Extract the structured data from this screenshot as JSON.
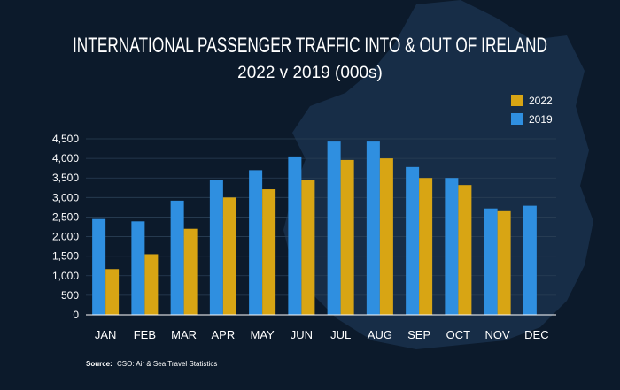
{
  "chart_data": {
    "type": "bar",
    "title": "INTERNATIONAL PASSENGER TRAFFIC INTO & OUT OF IRELAND",
    "subtitle": "2022 v 2019 (000s)",
    "categories": [
      "JAN",
      "FEB",
      "MAR",
      "APR",
      "MAY",
      "JUN",
      "JUL",
      "AUG",
      "SEP",
      "OCT",
      "NOV",
      "DEC"
    ],
    "series": [
      {
        "name": "2019",
        "color": "#2f8fe0",
        "values": [
          2450,
          2390,
          2920,
          3460,
          3700,
          4050,
          4430,
          4430,
          3780,
          3500,
          2720,
          2790
        ]
      },
      {
        "name": "2022",
        "color": "#d8a514",
        "values": [
          1170,
          1550,
          2200,
          3000,
          3210,
          3460,
          3960,
          4000,
          3500,
          3320,
          2650,
          null
        ]
      }
    ],
    "legend_order": [
      "2022",
      "2019"
    ],
    "yticks": [
      "0",
      "500",
      "1,000",
      "1,500",
      "2,000",
      "2,500",
      "3,000",
      "3,500",
      "4,000",
      "4,500"
    ],
    "ylim": [
      0,
      4500
    ],
    "grid": true,
    "legend_position": "top-right",
    "source_label": "Source:",
    "source_text": "CSO: Air & Sea Travel Statistics"
  },
  "colors": {
    "background": "#0c1a2b",
    "map_shape": "#18304a",
    "grid": "#2a3f55",
    "axis": "#ffffff"
  }
}
